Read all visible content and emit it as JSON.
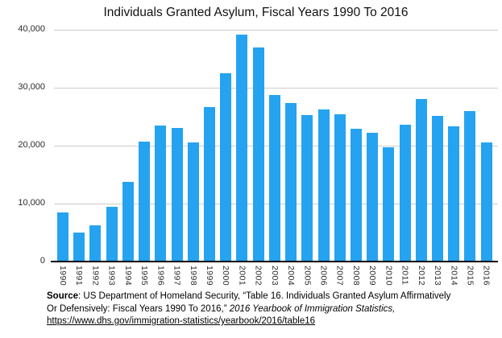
{
  "chart_data": {
    "type": "bar",
    "title": "Individuals Granted Asylum, Fiscal Years 1990 To 2016",
    "categories": [
      "1990",
      "1991",
      "1992",
      "1993",
      "1994",
      "1995",
      "1996",
      "1997",
      "1998",
      "1999",
      "2000",
      "2001",
      "2002",
      "2003",
      "2004",
      "2005",
      "2006",
      "2007",
      "2008",
      "2009",
      "2010",
      "2011",
      "2012",
      "2013",
      "2014",
      "2015",
      "2016"
    ],
    "values": [
      8500,
      5000,
      6300,
      9500,
      13800,
      20700,
      23500,
      23000,
      20500,
      26600,
      32500,
      39200,
      37000,
      28800,
      27400,
      25300,
      26300,
      25400,
      22900,
      22200,
      19700,
      23600,
      28000,
      25100,
      23400,
      26000,
      20500
    ],
    "xlabel": "",
    "ylabel": "",
    "ylim": [
      0,
      40000
    ],
    "yticks": [
      0,
      10000,
      20000,
      30000,
      40000
    ],
    "ytick_labels": [
      "0",
      "10,000",
      "20,000",
      "30,000",
      "40,000"
    ],
    "grid": true,
    "legend": "none",
    "x_tick_rotation_deg": 90,
    "bar_color": "#25A3F0",
    "gridline_color": "#cccccc",
    "axis_line_color": "#000000"
  },
  "source": {
    "bold_label": "Source",
    "line1_rest": ": US Department of Homeland Security, “Table 16. Individuals Granted Asylum Affirmatively",
    "line2_normal": "Or Defensively: Fiscal Years 1990 To 2016,” ",
    "line2_italic": "2016 Yearbook of Immigration Statistics,",
    "link_url": "https://www.dhs.gov/immigration-statistics/yearbook/2016/table16"
  }
}
